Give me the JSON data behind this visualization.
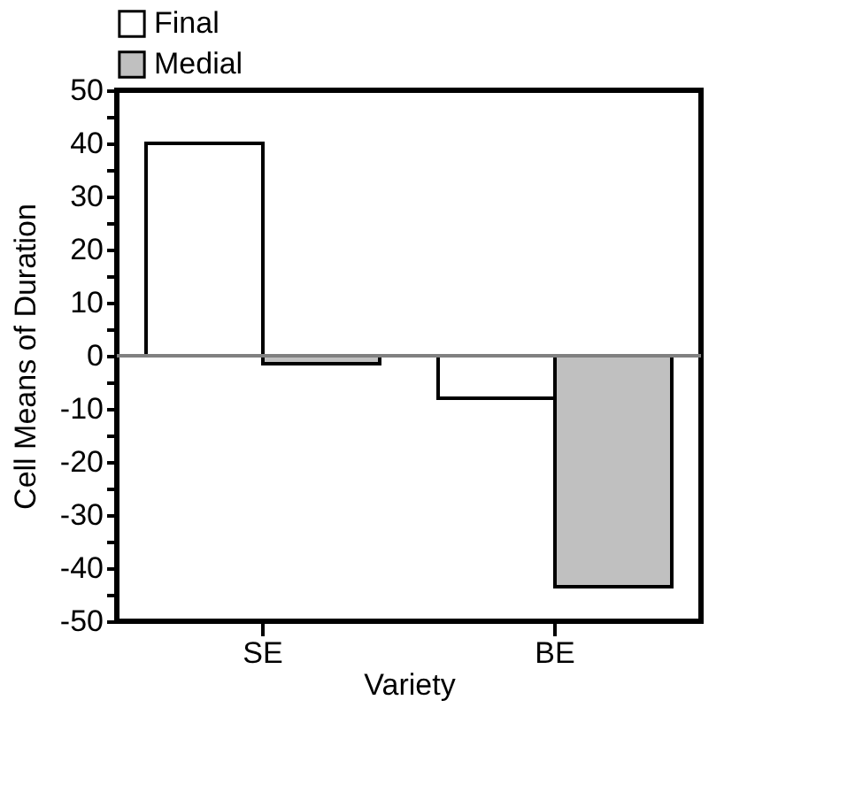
{
  "chart_data": {
    "type": "bar",
    "xlabel": "Variety",
    "ylabel": "Cell Means of Duration",
    "categories": [
      "SE",
      "BE"
    ],
    "series": [
      {
        "name": "Final",
        "color": "#ffffff",
        "values": [
          40,
          -8
        ]
      },
      {
        "name": "Medial",
        "color": "#c0c0c0",
        "values": [
          -1.5,
          -43.5
        ]
      }
    ],
    "ylim": [
      -50,
      50
    ],
    "yticks": [
      -50,
      {
        "value": -45,
        "label": null
      },
      -40,
      {
        "value": -35,
        "label": null
      },
      -30,
      {
        "value": -25,
        "label": null
      },
      -20,
      {
        "value": -15,
        "label": null
      },
      -10,
      {
        "value": -5,
        "label": null
      },
      0,
      {
        "value": 5,
        "label": null
      },
      10,
      {
        "value": 15,
        "label": null
      },
      20,
      {
        "value": 25,
        "label": null
      },
      30,
      {
        "value": 35,
        "label": null
      },
      40,
      {
        "value": 45,
        "label": null
      },
      50
    ],
    "ref_lines": [
      {
        "axis": "y",
        "value": 0,
        "color": "#808080"
      }
    ],
    "legend": "top"
  }
}
